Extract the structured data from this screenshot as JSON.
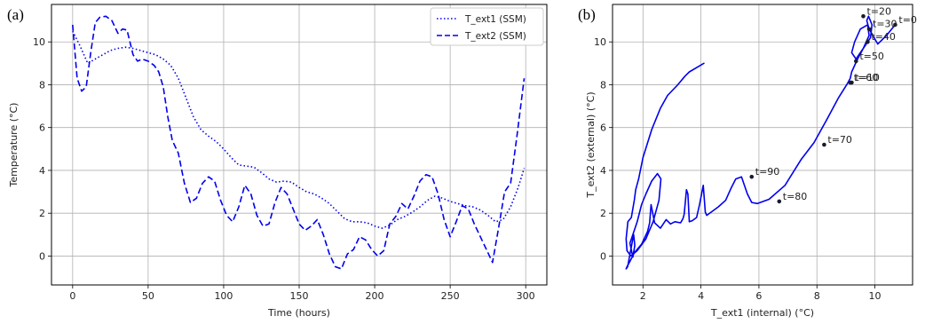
{
  "chart_data": [
    {
      "type": "line",
      "panel_label": "(a)",
      "xlabel": "Time (hours)",
      "ylabel": "Temperature (°C)",
      "xlim": [
        -14,
        314
      ],
      "ylim": [
        -1.35,
        11.75
      ],
      "xticks": [
        0,
        50,
        100,
        150,
        200,
        250,
        300
      ],
      "yticks": [
        0,
        2,
        4,
        6,
        8,
        10
      ],
      "grid": true,
      "legend_position": "upper right",
      "series": [
        {
          "name": "T_ext1 (SSM)",
          "style": "dotted",
          "color": "#0000ee",
          "x": [
            0,
            5,
            10,
            15,
            20,
            25,
            30,
            35,
            40,
            45,
            50,
            55,
            60,
            65,
            70,
            75,
            80,
            85,
            90,
            95,
            100,
            105,
            110,
            115,
            120,
            125,
            130,
            135,
            140,
            145,
            150,
            155,
            160,
            165,
            170,
            175,
            180,
            185,
            190,
            195,
            200,
            205,
            210,
            215,
            220,
            225,
            230,
            235,
            240,
            245,
            250,
            255,
            260,
            265,
            270,
            275,
            280,
            285,
            290,
            295,
            299
          ],
          "y": [
            10.5,
            9.8,
            9.0,
            9.2,
            9.4,
            9.6,
            9.7,
            9.75,
            9.7,
            9.6,
            9.5,
            9.4,
            9.2,
            8.9,
            8.3,
            7.4,
            6.5,
            5.9,
            5.6,
            5.35,
            5.0,
            4.6,
            4.25,
            4.2,
            4.15,
            3.9,
            3.6,
            3.45,
            3.5,
            3.45,
            3.2,
            3.0,
            2.9,
            2.7,
            2.45,
            2.1,
            1.75,
            1.6,
            1.6,
            1.55,
            1.4,
            1.3,
            1.45,
            1.7,
            1.85,
            2.05,
            2.3,
            2.6,
            2.8,
            2.7,
            2.55,
            2.45,
            2.35,
            2.3,
            2.15,
            1.9,
            1.6,
            1.7,
            2.3,
            3.2,
            4.1
          ]
        },
        {
          "name": "T_ext2 (SSM)",
          "style": "dashed",
          "color": "#0000ee",
          "x": [
            0,
            3,
            6,
            9,
            12,
            15,
            18,
            22,
            26,
            30,
            33,
            36,
            40,
            43,
            46,
            50,
            54,
            57,
            60,
            63,
            66,
            70,
            74,
            78,
            82,
            86,
            90,
            94,
            98,
            102,
            106,
            110,
            114,
            118,
            122,
            126,
            130,
            134,
            138,
            142,
            146,
            150,
            154,
            158,
            162,
            166,
            170,
            174,
            178,
            182,
            186,
            190,
            194,
            198,
            202,
            206,
            210,
            214,
            218,
            222,
            226,
            230,
            234,
            238,
            242,
            246,
            250,
            254,
            258,
            262,
            266,
            270,
            274,
            278,
            282,
            286,
            290,
            294,
            299
          ],
          "y": [
            10.8,
            8.3,
            7.7,
            7.9,
            9.5,
            10.9,
            11.15,
            11.2,
            11.0,
            10.4,
            10.6,
            10.55,
            9.4,
            9.1,
            9.2,
            9.1,
            8.9,
            8.6,
            7.9,
            6.5,
            5.4,
            4.8,
            3.4,
            2.5,
            2.7,
            3.4,
            3.7,
            3.5,
            2.6,
            1.9,
            1.6,
            2.3,
            3.3,
            2.9,
            1.9,
            1.4,
            1.5,
            2.5,
            3.2,
            2.9,
            2.2,
            1.5,
            1.2,
            1.4,
            1.7,
            1.0,
            0.1,
            -0.5,
            -0.6,
            0.1,
            0.3,
            0.9,
            0.75,
            0.3,
            0.0,
            0.25,
            1.5,
            1.85,
            2.45,
            2.2,
            2.8,
            3.5,
            3.8,
            3.7,
            2.9,
            1.7,
            0.9,
            1.6,
            2.35,
            2.2,
            1.5,
            0.9,
            0.3,
            -0.3,
            1.3,
            3.0,
            3.4,
            5.5,
            8.3
          ]
        }
      ]
    },
    {
      "type": "line",
      "panel_label": "(b)",
      "xlabel": "T_ext1 (internal) (°C)",
      "ylabel": "T_ext2 (external) (°C)",
      "xlim": [
        0.95,
        11.3
      ],
      "ylim": [
        -1.35,
        11.75
      ],
      "xticks": [
        2,
        4,
        6,
        8,
        10
      ],
      "yticks": [
        0,
        2,
        4,
        6,
        8,
        10
      ],
      "grid": true,
      "series": [
        {
          "name": "",
          "style": "solid",
          "color": "#0000ee",
          "x": [
            10.7,
            10.4,
            10.1,
            9.8,
            9.72,
            9.78,
            9.9,
            9.85,
            9.6,
            9.35,
            9.2,
            9.3,
            9.5,
            9.75,
            9.8,
            9.6,
            9.4,
            9.2,
            9.15,
            9.05,
            8.75,
            8.35,
            7.9,
            7.45,
            6.9,
            6.35,
            5.95,
            5.75,
            5.6,
            5.4,
            5.2,
            5.05,
            4.85,
            4.6,
            4.45,
            4.2,
            4.15,
            4.08,
            3.95,
            3.85,
            3.7,
            3.6,
            3.55,
            3.5,
            3.42,
            3.38,
            3.3,
            3.1,
            2.95,
            2.8,
            2.6,
            2.4,
            2.28,
            2.23,
            2.16,
            1.95,
            1.7,
            1.55,
            1.45,
            1.42,
            1.47,
            1.58,
            1.68,
            1.72,
            1.65,
            1.55,
            1.8,
            1.95,
            2.1,
            2.3,
            2.5,
            2.62,
            2.55,
            2.35,
            2.1,
            1.8,
            1.58,
            1.45,
            1.42,
            1.48,
            1.6,
            1.7,
            1.75,
            1.85,
            2.0,
            2.3,
            2.6,
            2.85,
            3.2,
            3.45,
            3.6,
            3.85,
            4.1
          ],
          "y": [
            10.8,
            10.3,
            9.9,
            10.6,
            11.0,
            11.2,
            10.8,
            10.2,
            9.7,
            9.2,
            9.5,
            10.0,
            10.6,
            10.8,
            10.3,
            9.7,
            9.2,
            8.6,
            8.3,
            8.05,
            7.4,
            6.4,
            5.3,
            4.5,
            3.3,
            2.65,
            2.45,
            2.5,
            2.9,
            3.7,
            3.6,
            3.2,
            2.6,
            2.3,
            2.15,
            1.9,
            2.05,
            3.3,
            2.4,
            1.8,
            1.65,
            1.6,
            2.9,
            3.1,
            1.95,
            1.75,
            1.55,
            1.6,
            1.5,
            1.7,
            1.3,
            1.55,
            2.4,
            1.55,
            1.15,
            0.55,
            0.15,
            -0.25,
            -0.5,
            -0.6,
            -0.5,
            0.3,
            1.0,
            0.5,
            -0.05,
            0.6,
            1.6,
            2.4,
            2.9,
            3.5,
            3.85,
            3.6,
            2.6,
            1.6,
            0.8,
            0.25,
            0.0,
            0.25,
            0.8,
            1.6,
            1.8,
            2.6,
            3.1,
            3.6,
            4.6,
            5.9,
            6.9,
            7.5,
            8.0,
            8.4,
            8.6,
            8.8,
            9.0
          ]
        }
      ],
      "markers": [
        {
          "label": "t=0",
          "x": 10.7,
          "y": 10.8
        },
        {
          "label": "t=10",
          "x": 9.2,
          "y": 8.1
        },
        {
          "label": "t=20",
          "x": 9.6,
          "y": 11.2
        },
        {
          "label": "t=30",
          "x": 9.8,
          "y": 10.6
        },
        {
          "label": "t=40",
          "x": 9.75,
          "y": 10.0
        },
        {
          "label": "t=50",
          "x": 9.35,
          "y": 9.1
        },
        {
          "label": "t=60",
          "x": 9.15,
          "y": 8.1
        },
        {
          "label": "t=70",
          "x": 8.25,
          "y": 5.2
        },
        {
          "label": "t=80",
          "x": 6.7,
          "y": 2.55
        },
        {
          "label": "t=90",
          "x": 5.75,
          "y": 3.7
        }
      ]
    }
  ]
}
